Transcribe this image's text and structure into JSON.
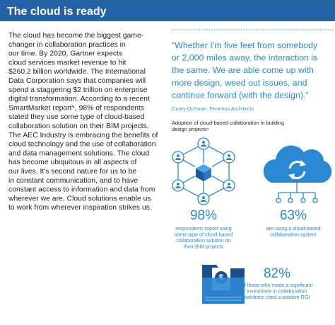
{
  "header": {
    "title": "The cloud is ready"
  },
  "body": {
    "lines": [
      "The cloud has become the biggest game-",
      "changer in collaboration practices in",
      "our time. By 2020, Gartner expects",
      "cloud services market revenue to hit",
      "$260.2 billion worldwide. The International",
      "Data Corporation says that companies will",
      "spend a staggering $2 trillion on enterprise",
      "digital transformation. According to a recent",
      "SmartMarket report⁵, 98% of respondents",
      "stated they use some type of cloud-based",
      "collaboration solution on their BIM projects.",
      "The AEC Industry is embracing the benefits of",
      "cloud technology and the use of collaboration",
      "and data management solutions. The cloud",
      "has become ubiquitous in all aspects of",
      "our lives. It's second nature for us to be",
      "in constant communication, and to have",
      "constant access to information and data from",
      "wherever we are. Cloud solutions enable us",
      "to work from wherever inspiration strikes us."
    ]
  },
  "quote": {
    "lines": [
      "“Whether I'm five feet from somebody",
      "or 2,000 miles away, the interaction is",
      "the same. We are able come up with",
      "more design, weed out issues, and",
      "continue forward (with the design).”"
    ],
    "attribution": "Corey Ochsner, Fentress Architects"
  },
  "stats_heading": {
    "lines": [
      "Adoption of cloud-based collaboration in building",
      "design projects⁶"
    ]
  },
  "stats": [
    {
      "value": "98%",
      "caption": [
        "respondents report using",
        "some type of cloud-based",
        "collaboration solution on",
        "their BIM projects"
      ]
    },
    {
      "value": "63%",
      "caption": [
        "are using a cloud-based",
        "collaboration system"
      ]
    },
    {
      "value": "82%",
      "caption": [
        "of those who made a significant",
        "investment in collaboration",
        "solutions cited a positive ROI"
      ]
    }
  ]
}
